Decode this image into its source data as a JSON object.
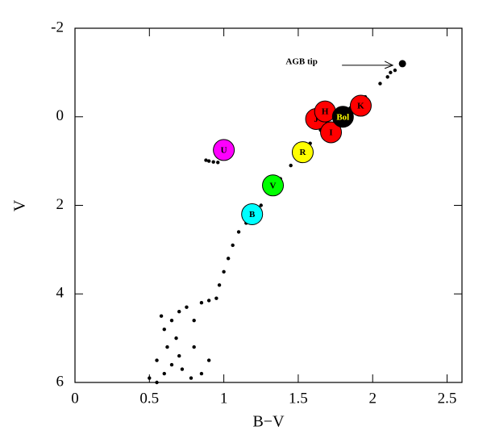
{
  "chart_data": {
    "type": "scatter",
    "xlabel": "B−V",
    "ylabel": "V",
    "xlim": [
      0,
      2.6
    ],
    "ylim": [
      6,
      -2
    ],
    "xticks": [
      0,
      0.5,
      1,
      1.5,
      2,
      2.5
    ],
    "yticks": [
      -2,
      0,
      2,
      4,
      6
    ],
    "stars": {
      "color": "#000000",
      "x": [
        0.55,
        0.6,
        0.65,
        0.7,
        0.62,
        0.68,
        0.6,
        0.65,
        0.7,
        0.75,
        0.55,
        0.72,
        0.78,
        0.5,
        0.85,
        0.9,
        0.8,
        0.58,
        0.8,
        0.85,
        0.9,
        0.95,
        0.97,
        1.0,
        1.03,
        1.06,
        1.1,
        1.15,
        1.25,
        1.3,
        1.38,
        1.45,
        1.5,
        1.58,
        1.65,
        1.75,
        1.85,
        1.95,
        2.05,
        2.1,
        2.12,
        2.15,
        0.88,
        0.9,
        0.93,
        0.96
      ],
      "y": [
        6,
        5.8,
        5.6,
        5.4,
        5.2,
        5.0,
        4.8,
        4.6,
        4.4,
        4.3,
        5.5,
        5.7,
        5.9,
        5.9,
        5.8,
        5.5,
        5.2,
        4.5,
        4.6,
        4.2,
        4.15,
        4.1,
        3.8,
        3.5,
        3.2,
        2.9,
        2.6,
        2.4,
        2.0,
        1.7,
        1.4,
        1.1,
        0.9,
        0.6,
        0.3,
        0.05,
        -0.2,
        -0.45,
        -0.75,
        -0.9,
        -1.0,
        -1.05,
        0.98,
        1.0,
        1.02,
        1.03
      ]
    },
    "filters": [
      {
        "label": "U",
        "color": "#ff00ff",
        "x": 1.0,
        "y": 0.75
      },
      {
        "label": "B",
        "color": "#00ffff",
        "x": 1.19,
        "y": 2.2
      },
      {
        "label": "V",
        "color": "#00ff00",
        "x": 1.33,
        "y": 1.55
      },
      {
        "label": "R",
        "color": "#ffff00",
        "x": 1.53,
        "y": 0.8
      },
      {
        "label": "J",
        "color": "#ff0000",
        "x": 1.62,
        "y": 0.05
      },
      {
        "label": "I",
        "color": "#ff0000",
        "x": 1.72,
        "y": 0.35
      },
      {
        "label": "H",
        "color": "#ff0000",
        "x": 1.68,
        "y": -0.12
      },
      {
        "label": "Bol",
        "color": "#000000",
        "x": 1.8,
        "y": 0.0
      },
      {
        "label": "K",
        "color": "#ff0000",
        "x": 1.92,
        "y": -0.25
      }
    ],
    "agb_tip": {
      "x": 2.2,
      "y": -1.2,
      "label": "AGB tip"
    }
  }
}
